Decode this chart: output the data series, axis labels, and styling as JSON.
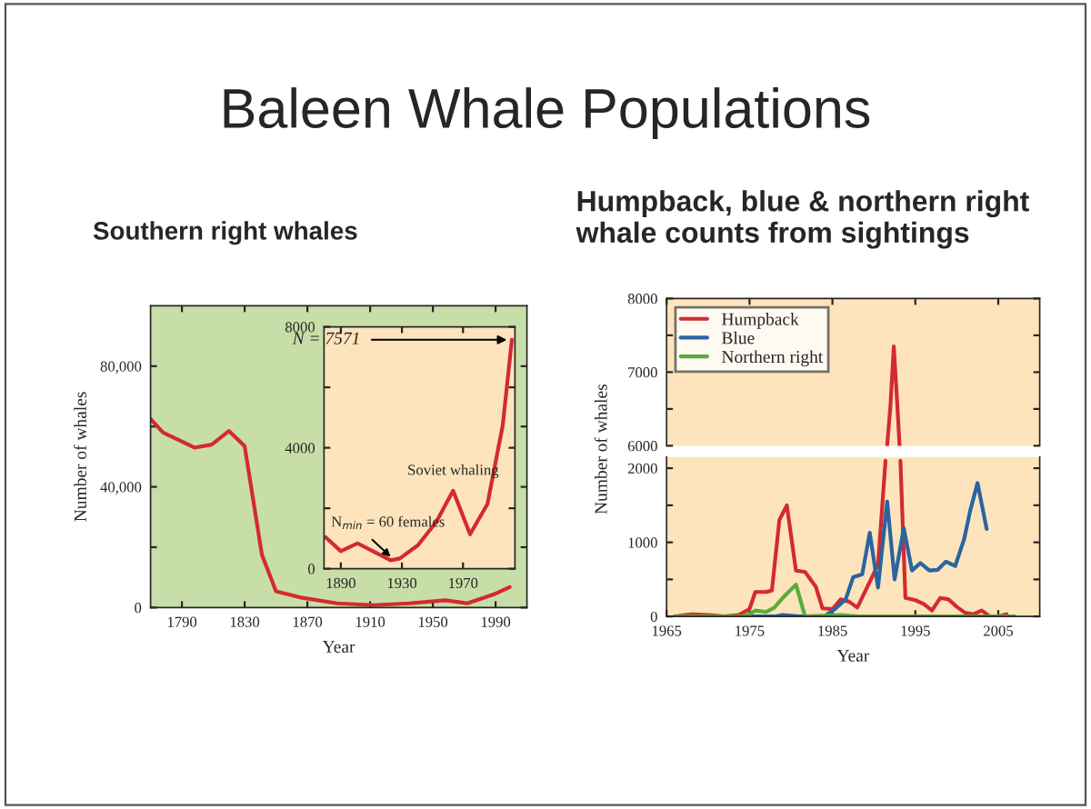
{
  "chart_data": [
    {
      "type": "line",
      "title": "Baleen Whale Populations",
      "subtitle": "Southern right whales",
      "xlabel": "Year",
      "ylabel": "Number of whales",
      "xlim": [
        1770,
        2010
      ],
      "xticks": [
        1790,
        1830,
        1870,
        1910,
        1950,
        1990
      ],
      "ylim": [
        0,
        100000
      ],
      "yticks": [
        {
          "value": 0,
          "label": "0"
        },
        {
          "value": 20000,
          "label": null
        },
        {
          "value": 40000,
          "label": "40,000"
        },
        {
          "value": 60000,
          "label": null
        },
        {
          "value": 80000,
          "label": "80,000"
        }
      ],
      "grid": false,
      "series": [
        {
          "color": "#d42a32",
          "x": [
            1770,
            1778,
            1798,
            1809,
            1820,
            1830,
            1841,
            1850,
            1865,
            1889,
            1912,
            1935,
            1958,
            1972,
            1989,
            1999
          ],
          "values": [
            62500,
            58000,
            53000,
            54000,
            58500,
            53500,
            17500,
            5400,
            3400,
            1400,
            800,
            1400,
            2400,
            1400,
            4400,
            6800
          ]
        }
      ]
    },
    {
      "type": "line",
      "xlim": [
        1879,
        2004
      ],
      "xticks": [
        1890,
        1930,
        1970
      ],
      "ylim": [
        0,
        8000
      ],
      "yticks": [
        0,
        {
          "value": 2000,
          "label": null
        },
        4000,
        {
          "value": 6000,
          "label": null
        },
        8000
      ],
      "grid": false,
      "annotations": [
        {
          "text": "N = 7571",
          "x": 2002,
          "y": 7571
        },
        {
          "text": "N$_{min}$ = 60 females",
          "x": 1925,
          "y": 280
        },
        {
          "text": "Soviet whaling",
          "x": 1963.5,
          "y": 2580
        }
      ],
      "series": [
        {
          "color": "#d42a32",
          "x": [
            1880,
            1890,
            1901,
            1911,
            1922.6,
            1928.6,
            1940.5,
            1952.4,
            1963.5,
            1974.6,
            1986,
            1996,
            2002
          ],
          "values": [
            1040,
            580,
            840,
            580,
            280,
            340,
            780,
            1540,
            2580,
            1140,
            2140,
            4740,
            7571
          ]
        }
      ]
    },
    {
      "type": "line",
      "title": "Humpback, blue & northern right whale counts from sightings",
      "xlim": [
        1965,
        2010
      ],
      "xticks": [
        1965,
        1975,
        1985,
        1995,
        2005
      ],
      "ylim": [
        6000,
        8000
      ],
      "yticks": [
        6000,
        {
          "value": 6500,
          "label": null
        },
        7000,
        {
          "value": 7500,
          "label": null
        },
        8000
      ],
      "tick_labels": "y",
      "grid": false,
      "series": [
        {
          "color": "#d42a32",
          "x": [
            1991.6,
            1992,
            1992.4,
            1992.8,
            1993.1
          ],
          "values": [
            6000,
            6550,
            7350,
            6600,
            6000
          ]
        }
      ]
    },
    {
      "type": "line",
      "xlabel": "Year",
      "ylabel": "Number of whales",
      "xlim": [
        1965,
        2010
      ],
      "xticks": [
        1965,
        1975,
        1985,
        1995,
        2005
      ],
      "ylim": [
        0,
        2150
      ],
      "yticks": [
        0,
        {
          "value": 500,
          "label": null
        },
        1000,
        {
          "value": 1500,
          "label": null
        },
        2000
      ],
      "grid": false,
      "legend": "top left",
      "series": [
        {
          "name": "Humpback",
          "color": "#d42a32",
          "x": [
            1966,
            1968,
            1970,
            1972,
            1973.7,
            1975,
            1975.7,
            1977,
            1977.7,
            1978.6,
            1979.5,
            1980.6,
            1981.7,
            1983,
            1983.8,
            1985,
            1986,
            1987,
            1988,
            1989,
            1990.5,
            1991.4,
            1992.3,
            1993.2,
            1993.8,
            1995,
            1996,
            1997,
            1998,
            1999,
            2000,
            2001,
            2002,
            2003,
            2004,
            2005,
            2006
          ],
          "values": [
            0,
            30,
            20,
            0,
            20,
            100,
            330,
            330,
            350,
            1300,
            1500,
            620,
            600,
            400,
            110,
            100,
            230,
            200,
            120,
            350,
            700,
            2100,
            null,
            2100,
            250,
            220,
            170,
            80,
            250,
            230,
            130,
            50,
            30,
            80,
            0,
            0,
            30
          ]
        },
        {
          "name": "Blue",
          "color": "#2b64a0",
          "x": [
            1966,
            1978,
            1979,
            1980,
            1981,
            1984,
            1985.3,
            1986.6,
            1987.5,
            1988.6,
            1989.5,
            1990.5,
            1991.6,
            1992.5,
            1993.6,
            1994.6,
            1995.6,
            1996.7,
            1997.7,
            1998.7,
            1999.8,
            2000.9,
            2001.6,
            2002.5,
            2003.6
          ],
          "values": [
            0,
            0,
            20,
            10,
            0,
            0,
            100,
            230,
            530,
            570,
            1130,
            390,
            1550,
            500,
            1190,
            620,
            720,
            620,
            630,
            740,
            680,
            1050,
            1420,
            1800,
            1180
          ]
        },
        {
          "name": "Northern right",
          "color": "#5aab3c",
          "x": [
            1966,
            1974,
            1975,
            1975.7,
            1977,
            1978,
            1979,
            1980.6,
            1981.7,
            1986,
            1988,
            2007
          ],
          "values": [
            0,
            0,
            30,
            80,
            60,
            120,
            250,
            430,
            0,
            20,
            0,
            0
          ]
        }
      ]
    }
  ]
}
